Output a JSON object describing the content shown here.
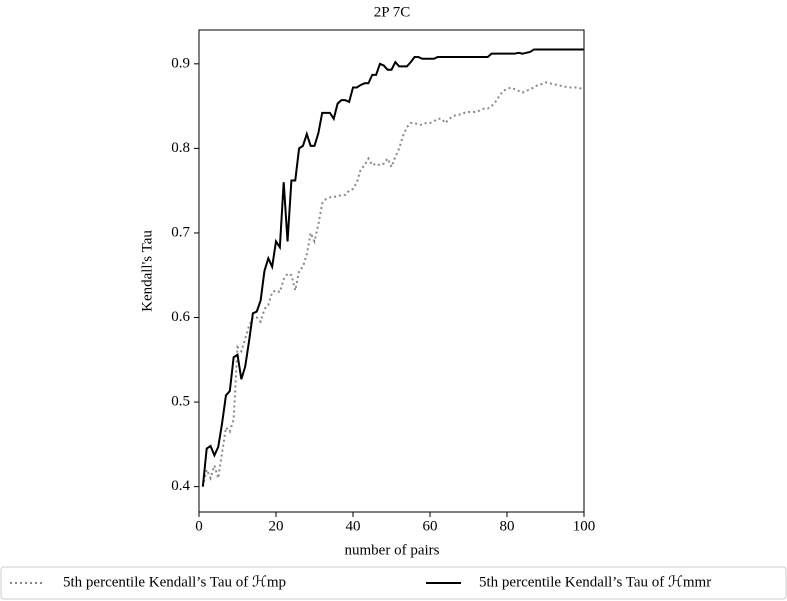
{
  "chart_data": {
    "type": "line",
    "title": "2P 7C",
    "x_label": "number of pairs",
    "y_label": "Kendall's Tau",
    "x": [
      1,
      2,
      3,
      4,
      5,
      6,
      7,
      8,
      9,
      10,
      11,
      12,
      13,
      14,
      15,
      16,
      17,
      18,
      19,
      20,
      21,
      22,
      23,
      24,
      25,
      26,
      27,
      28,
      29,
      30,
      31,
      32,
      33,
      34,
      35,
      36,
      37,
      38,
      39,
      40,
      41,
      42,
      43,
      44,
      45,
      46,
      47,
      48,
      49,
      50,
      51,
      52,
      53,
      54,
      55,
      56,
      57,
      58,
      59,
      60,
      61,
      62,
      63,
      64,
      65,
      66,
      67,
      68,
      69,
      70,
      71,
      72,
      73,
      74,
      75,
      76,
      77,
      78,
      79,
      80,
      81,
      82,
      83,
      84,
      85,
      86,
      87,
      88,
      89,
      90,
      91,
      92,
      93,
      94,
      95,
      96,
      97,
      98,
      99,
      100
    ],
    "series": [
      {
        "name": "5th percentile Kendall’s Tau of ℋmp",
        "color": "#888888",
        "style": "dotted",
        "values": [
          0.4,
          0.42,
          0.41,
          0.425,
          0.41,
          0.44,
          0.47,
          0.465,
          0.48,
          0.565,
          0.56,
          0.575,
          0.59,
          0.6,
          0.6,
          0.595,
          0.61,
          0.615,
          0.63,
          0.632,
          0.63,
          0.645,
          0.652,
          0.65,
          0.632,
          0.655,
          0.66,
          0.675,
          0.7,
          0.69,
          0.71,
          0.735,
          0.74,
          0.742,
          0.743,
          0.743,
          0.745,
          0.745,
          0.75,
          0.752,
          0.76,
          0.775,
          0.78,
          0.788,
          0.78,
          0.782,
          0.78,
          0.782,
          0.788,
          0.778,
          0.79,
          0.8,
          0.815,
          0.825,
          0.83,
          0.83,
          0.828,
          0.828,
          0.83,
          0.83,
          0.832,
          0.835,
          0.835,
          0.83,
          0.835,
          0.838,
          0.84,
          0.84,
          0.842,
          0.843,
          0.843,
          0.843,
          0.845,
          0.847,
          0.847,
          0.85,
          0.855,
          0.862,
          0.868,
          0.87,
          0.872,
          0.87,
          0.868,
          0.866,
          0.868,
          0.87,
          0.872,
          0.875,
          0.876,
          0.878,
          0.877,
          0.876,
          0.875,
          0.874,
          0.873,
          0.872,
          0.872,
          0.872,
          0.871,
          0.871
        ]
      },
      {
        "name": "5th percentile Kendall’s Tau of ℋmmr",
        "color": "#000000",
        "style": "solid",
        "values": [
          0.4,
          0.445,
          0.448,
          0.437,
          0.447,
          0.475,
          0.508,
          0.513,
          0.553,
          0.556,
          0.527,
          0.542,
          0.572,
          0.605,
          0.607,
          0.62,
          0.655,
          0.67,
          0.66,
          0.69,
          0.683,
          0.76,
          0.69,
          0.762,
          0.762,
          0.8,
          0.803,
          0.817,
          0.803,
          0.803,
          0.818,
          0.842,
          0.842,
          0.842,
          0.835,
          0.853,
          0.857,
          0.857,
          0.855,
          0.872,
          0.872,
          0.875,
          0.877,
          0.877,
          0.887,
          0.887,
          0.9,
          0.898,
          0.893,
          0.893,
          0.902,
          0.897,
          0.897,
          0.897,
          0.902,
          0.908,
          0.908,
          0.906,
          0.906,
          0.906,
          0.906,
          0.908,
          0.908,
          0.908,
          0.908,
          0.908,
          0.908,
          0.908,
          0.908,
          0.908,
          0.908,
          0.908,
          0.908,
          0.908,
          0.908,
          0.912,
          0.912,
          0.912,
          0.912,
          0.912,
          0.912,
          0.912,
          0.913,
          0.912,
          0.913,
          0.914,
          0.917,
          0.917,
          0.917,
          0.917,
          0.917,
          0.917,
          0.917,
          0.917,
          0.917,
          0.917,
          0.917,
          0.917,
          0.917,
          0.917
        ]
      }
    ],
    "xlim": [
      0,
      100
    ],
    "xticks": [
      0,
      20,
      40,
      60,
      80,
      100
    ],
    "ylim": [
      0.37,
      0.94
    ],
    "yticks": [
      0.4,
      0.5,
      0.6,
      0.7,
      0.8,
      0.9
    ],
    "legend": "bottom"
  }
}
